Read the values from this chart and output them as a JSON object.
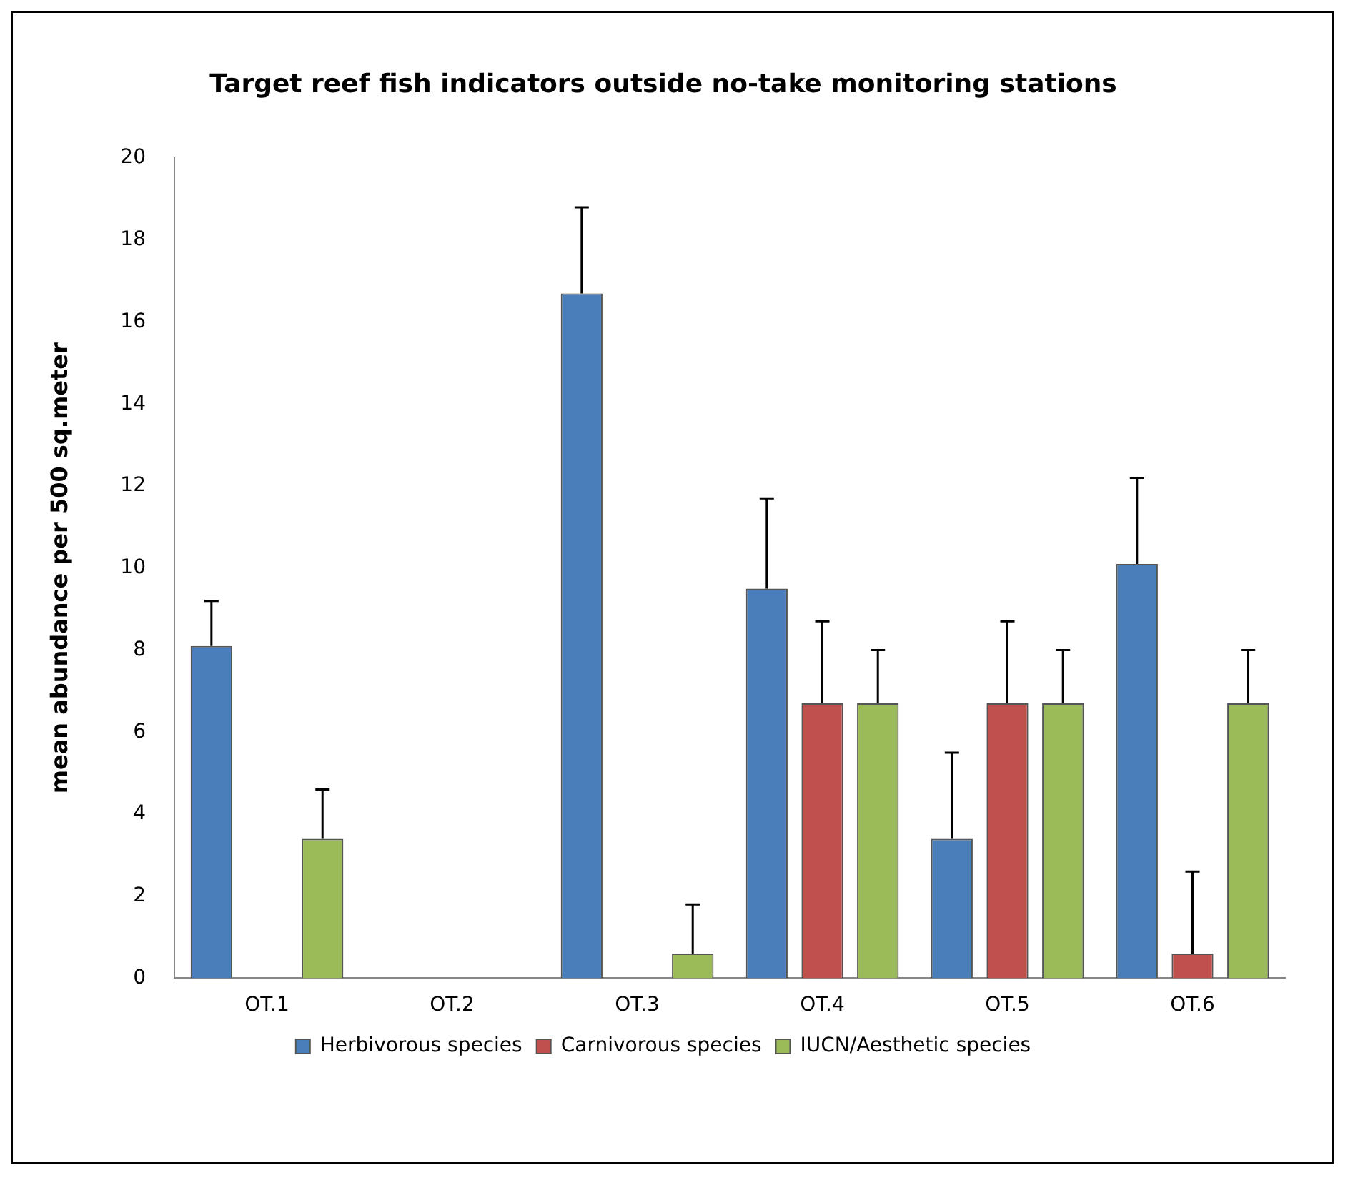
{
  "chart_data": {
    "type": "bar",
    "title": "Target reef fish indicators outside no-take monitoring stations",
    "ylabel": "mean abundance per 500 sq.meter",
    "categories": [
      "OT.1",
      "OT.2",
      "OT.3",
      "OT.4",
      "OT.5",
      "OT.6"
    ],
    "series": [
      {
        "name": "Herbivorous species",
        "color": "#4a7ebb",
        "values": [
          8.1,
          null,
          16.7,
          9.5,
          3.4,
          10.1
        ],
        "errors": [
          [
            8.1,
            9.2
          ],
          null,
          [
            16.7,
            18.8
          ],
          [
            9.5,
            11.7
          ],
          [
            3.4,
            5.5
          ],
          [
            10.1,
            12.2
          ]
        ]
      },
      {
        "name": "Carnivorous species",
        "color": "#c0504d",
        "values": [
          null,
          null,
          null,
          6.7,
          6.7,
          0.6
        ],
        "errors": [
          null,
          null,
          null,
          [
            6.7,
            8.7
          ],
          [
            6.7,
            8.7
          ],
          [
            0.6,
            2.6
          ]
        ]
      },
      {
        "name": "IUCN/Aesthetic species",
        "color": "#9bbb59",
        "values": [
          3.4,
          null,
          0.6,
          6.7,
          6.7,
          6.7
        ],
        "errors": [
          [
            3.4,
            4.6
          ],
          null,
          [
            0.6,
            1.8
          ],
          [
            6.7,
            8.0
          ],
          [
            6.7,
            8.0
          ],
          [
            6.7,
            8.0
          ]
        ]
      }
    ],
    "ylim": [
      0,
      20
    ],
    "yticks": [
      0,
      2,
      4,
      6,
      8,
      10,
      12,
      14,
      16,
      18,
      20
    ],
    "grid": false,
    "legend": "bottom"
  }
}
